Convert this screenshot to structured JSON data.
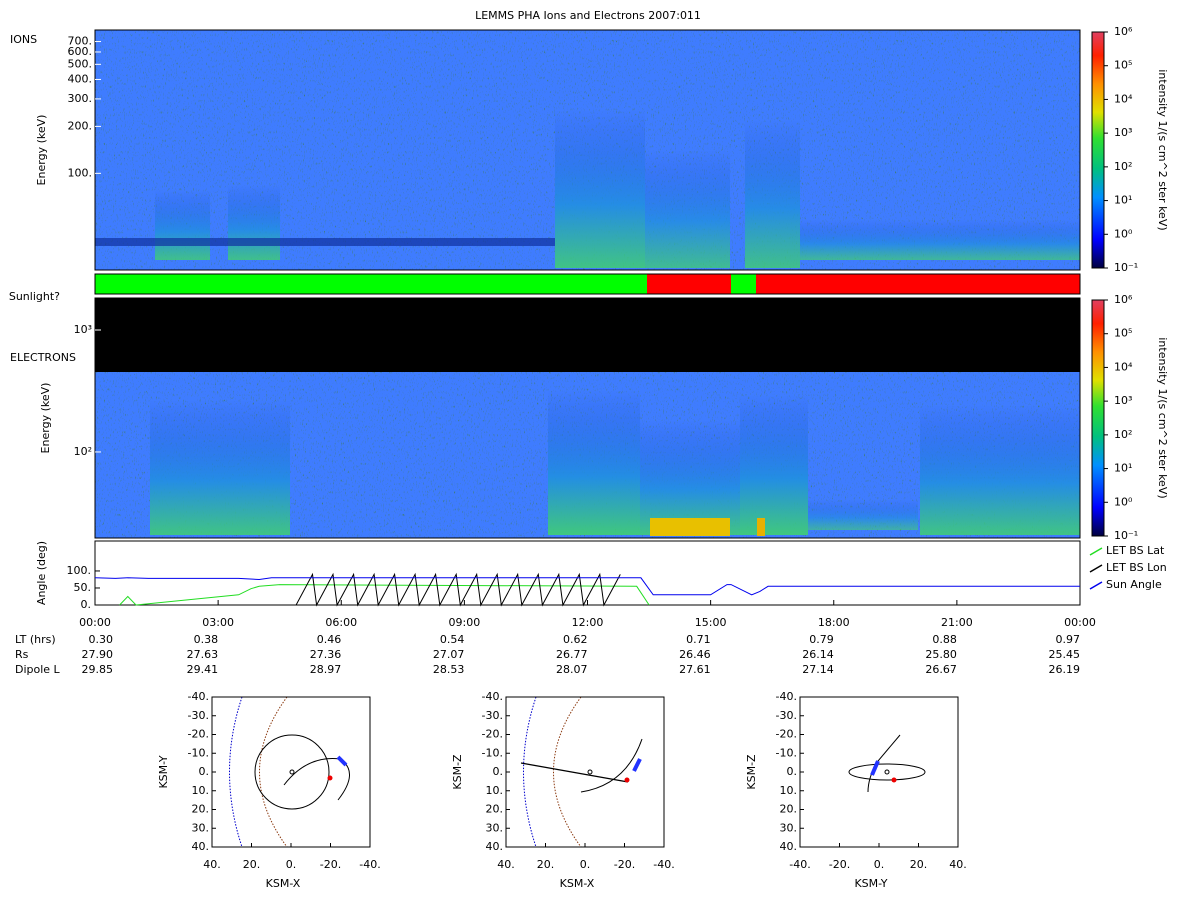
{
  "title": "LEMMS PHA Ions and Electrons  2007:011",
  "ions": {
    "label": "IONS",
    "ylabel": "Energy (keV)",
    "ylim": [
      24,
      830
    ],
    "yticks": [
      {
        "value": 100,
        "label": "100."
      },
      {
        "value": 200,
        "label": "200."
      },
      {
        "value": 300,
        "label": "300."
      },
      {
        "value": 400,
        "label": "400."
      },
      {
        "value": 500,
        "label": "500."
      },
      {
        "value": 600,
        "label": "600."
      },
      {
        "value": 700,
        "label": "700."
      }
    ],
    "colorbar": {
      "label": "intensity 1/(s cm^2 ster keV)",
      "lim": [
        0.1,
        1000000
      ],
      "ticks": [
        {
          "value": 0.1,
          "label": "10⁻¹"
        },
        {
          "value": 1,
          "label": "10⁰"
        },
        {
          "value": 10,
          "label": "10¹"
        },
        {
          "value": 100,
          "label": "10²"
        },
        {
          "value": 1000,
          "label": "10³"
        },
        {
          "value": 10000,
          "label": "10⁴"
        },
        {
          "value": 100000,
          "label": "10⁵"
        },
        {
          "value": 1000000,
          "label": "10⁶"
        }
      ]
    }
  },
  "sunlight_label": "Sunlight?",
  "electrons": {
    "label": "ELECTRONS",
    "ylabel": "Energy (keV)",
    "ylim": [
      19.7,
      1830
    ],
    "yticks": [
      {
        "value": 100,
        "label": "10²"
      },
      {
        "value": 1000,
        "label": "10³"
      }
    ],
    "colorbar": {
      "label": "intensity 1/(s cm^2 ster keV)",
      "lim": [
        0.1,
        1000000
      ],
      "ticks": [
        {
          "value": 0.1,
          "label": "10⁻¹"
        },
        {
          "value": 1,
          "label": "10⁰"
        },
        {
          "value": 10,
          "label": "10¹"
        },
        {
          "value": 100,
          "label": "10²"
        },
        {
          "value": 1000,
          "label": "10³"
        },
        {
          "value": 10000,
          "label": "10⁴"
        },
        {
          "value": 100000,
          "label": "10⁵"
        },
        {
          "value": 1000000,
          "label": "10⁶"
        }
      ]
    }
  },
  "angles": {
    "ylabel": "Angle (deg)",
    "ylim": [
      0,
      188
    ],
    "yticks": [
      {
        "value": 0,
        "label": "0."
      },
      {
        "value": 50,
        "label": "50."
      },
      {
        "value": 100,
        "label": "100."
      }
    ],
    "xlim": [
      0,
      24
    ],
    "xticks": [
      {
        "value": 0,
        "label": "00:00"
      },
      {
        "value": 3,
        "label": "03:00"
      },
      {
        "value": 6,
        "label": "06:00"
      },
      {
        "value": 9,
        "label": "09:00"
      },
      {
        "value": 12,
        "label": "12:00"
      },
      {
        "value": 15,
        "label": "15:00"
      },
      {
        "value": 18,
        "label": "18:00"
      },
      {
        "value": 21,
        "label": "21:00"
      },
      {
        "value": 24,
        "label": "00:00"
      }
    ],
    "series": [
      {
        "name": "LET BS Lat",
        "color": "#22dd22",
        "x": [
          0.6,
          0.8,
          1.0,
          3.5,
          3.8,
          4.0,
          4.5,
          13.2,
          13.5
        ],
        "y": [
          0,
          25,
          0,
          30,
          48,
          55,
          60,
          55,
          0
        ]
      },
      {
        "name": "LET BS Lon",
        "color": "#000000",
        "x": [
          4.9,
          5.3,
          5.4,
          5.8,
          5.9,
          6.3,
          6.4,
          6.8,
          6.9,
          7.3,
          7.4,
          7.8,
          7.9,
          8.3,
          8.4,
          8.8,
          8.9,
          9.3,
          9.4,
          9.8,
          9.9,
          10.3,
          10.4,
          10.8,
          10.9,
          11.3,
          11.4,
          11.8,
          11.9,
          12.3,
          12.4,
          12.8
        ],
        "y": [
          0,
          90,
          0,
          90,
          0,
          90,
          0,
          90,
          0,
          90,
          0,
          90,
          0,
          90,
          0,
          90,
          0,
          90,
          0,
          90,
          0,
          90,
          0,
          90,
          0,
          90,
          0,
          90,
          0,
          90,
          0,
          90
        ]
      },
      {
        "name": "Sun Angle",
        "color": "#0000ee",
        "x": [
          0,
          0.5,
          0.8,
          1.3,
          3.5,
          4.0,
          4.3,
          13.3,
          13.6,
          15.0,
          15.4,
          15.5,
          16.0,
          16.2,
          16.4,
          24
        ],
        "y": [
          80,
          78,
          80,
          78,
          78,
          75,
          80,
          80,
          30,
          30,
          60,
          60,
          30,
          40,
          55,
          55
        ]
      }
    ]
  },
  "ephemeris": {
    "rows": [
      {
        "label": "LT (hrs)",
        "values": [
          "0.30",
          "0.38",
          "0.46",
          "0.54",
          "0.62",
          "0.71",
          "0.79",
          "0.88",
          "0.97"
        ]
      },
      {
        "label": "Rs",
        "values": [
          "27.90",
          "27.63",
          "27.36",
          "27.07",
          "26.77",
          "26.46",
          "26.14",
          "25.80",
          "25.45"
        ]
      },
      {
        "label": "Dipole L",
        "values": [
          "29.85",
          "29.41",
          "28.97",
          "28.53",
          "28.07",
          "27.61",
          "27.14",
          "26.67",
          "26.19"
        ]
      }
    ]
  },
  "orbits": [
    {
      "xlabel": "KSM-X",
      "ylabel": "KSM-Y",
      "xlim": [
        40,
        -40
      ],
      "ylim": [
        -40,
        40
      ],
      "xticks": [
        {
          "value": 40,
          "label": "40."
        },
        {
          "value": 20,
          "label": "20."
        },
        {
          "value": 0,
          "label": "0."
        },
        {
          "value": -20,
          "label": "-20."
        },
        {
          "value": -40,
          "label": "-40."
        }
      ],
      "yticks": [
        {
          "value": -40,
          "label": "-40."
        },
        {
          "value": -30,
          "label": "-30."
        },
        {
          "value": -20,
          "label": "-20."
        },
        {
          "value": -10,
          "label": "-10."
        },
        {
          "value": 0,
          "label": "0."
        },
        {
          "value": 10,
          "label": "10."
        },
        {
          "value": 20,
          "label": "20."
        },
        {
          "value": 30,
          "label": "30."
        },
        {
          "value": 40,
          "label": "40."
        }
      ]
    },
    {
      "xlabel": "KSM-X",
      "ylabel": "KSM-Z",
      "xlim": [
        40,
        -40
      ],
      "ylim": [
        -40,
        40
      ],
      "xticks": [
        {
          "value": 40,
          "label": "40."
        },
        {
          "value": 20,
          "label": "20."
        },
        {
          "value": 0,
          "label": "0."
        },
        {
          "value": -20,
          "label": "-20."
        },
        {
          "value": -40,
          "label": "-40."
        }
      ],
      "yticks": [
        {
          "value": -40,
          "label": "-40."
        },
        {
          "value": -30,
          "label": "-30."
        },
        {
          "value": -20,
          "label": "-20."
        },
        {
          "value": -10,
          "label": "-10."
        },
        {
          "value": 0,
          "label": "0."
        },
        {
          "value": 10,
          "label": "10."
        },
        {
          "value": 20,
          "label": "20."
        },
        {
          "value": 30,
          "label": "30."
        },
        {
          "value": 40,
          "label": "40."
        }
      ]
    },
    {
      "xlabel": "KSM-Y",
      "ylabel": "KSM-Z",
      "xlim": [
        -40,
        40
      ],
      "ylim": [
        -40,
        40
      ],
      "xticks": [
        {
          "value": -40,
          "label": "-40."
        },
        {
          "value": -20,
          "label": "-20."
        },
        {
          "value": 0,
          "label": "0."
        },
        {
          "value": 20,
          "label": "20."
        },
        {
          "value": 40,
          "label": "40."
        }
      ],
      "yticks": [
        {
          "value": -40,
          "label": "-40."
        },
        {
          "value": -30,
          "label": "-30."
        },
        {
          "value": -20,
          "label": "-20."
        },
        {
          "value": -10,
          "label": "-10."
        },
        {
          "value": 0,
          "label": "0."
        },
        {
          "value": 10,
          "label": "10."
        },
        {
          "value": 20,
          "label": "20."
        },
        {
          "value": 30,
          "label": "30."
        },
        {
          "value": 40,
          "label": "40."
        }
      ]
    }
  ]
}
